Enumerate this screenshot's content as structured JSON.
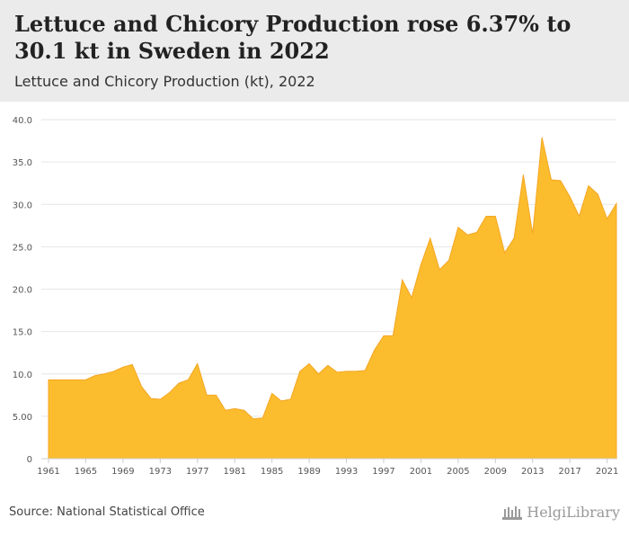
{
  "header": {
    "title": "Lettuce and Chicory Production rose 6.37% to 30.1 kt in Sweden in 2022",
    "subtitle": "Lettuce and Chicory Production (kt), 2022"
  },
  "footer": {
    "source": "Source: National Statistical Office",
    "brand": "HelgiLibrary"
  },
  "colors": {
    "area": "#fbbd2e",
    "area_stroke": "#f5a623",
    "grid": "#e6e6e6",
    "header_bg": "#ebebeb"
  },
  "chart_data": {
    "type": "area",
    "title": "Lettuce and Chicory Production (kt), 2022",
    "xlabel": "",
    "ylabel": "",
    "ylim": [
      0,
      40
    ],
    "yticks": [
      "0",
      "5.00",
      "10.0",
      "15.0",
      "20.0",
      "25.0",
      "30.0",
      "35.0",
      "40.0"
    ],
    "xticks": [
      "1961",
      "1965",
      "1969",
      "1973",
      "1977",
      "1981",
      "1985",
      "1989",
      "1993",
      "1997",
      "2001",
      "2005",
      "2009",
      "2013",
      "2017",
      "2021"
    ],
    "grid": true,
    "legend": "none",
    "x": [
      1961,
      1962,
      1963,
      1964,
      1965,
      1966,
      1967,
      1968,
      1969,
      1970,
      1971,
      1972,
      1973,
      1974,
      1975,
      1976,
      1977,
      1978,
      1979,
      1980,
      1981,
      1982,
      1983,
      1984,
      1985,
      1986,
      1987,
      1988,
      1989,
      1990,
      1991,
      1992,
      1993,
      1994,
      1995,
      1996,
      1997,
      1998,
      1999,
      2000,
      2001,
      2002,
      2003,
      2004,
      2005,
      2006,
      2007,
      2008,
      2009,
      2010,
      2011,
      2012,
      2013,
      2014,
      2015,
      2016,
      2017,
      2018,
      2019,
      2020,
      2021,
      2022
    ],
    "series": [
      {
        "values": [
          9.3,
          9.3,
          9.3,
          9.3,
          9.3,
          9.8,
          10.0,
          10.3,
          10.8,
          11.1,
          8.5,
          7.1,
          7.0,
          7.8,
          8.9,
          9.3,
          11.2,
          7.5,
          7.5,
          5.7,
          5.9,
          5.7,
          4.7,
          4.8,
          7.7,
          6.8,
          7.0,
          10.3,
          11.2,
          10.0,
          11.0,
          10.2,
          10.3,
          10.3,
          10.4,
          12.8,
          14.5,
          14.5,
          21.1,
          19.0,
          22.9,
          26.0,
          22.3,
          23.4,
          27.3,
          26.4,
          26.7,
          28.6,
          28.6,
          24.3,
          26.0,
          33.5,
          26.5,
          37.9,
          32.9,
          32.8,
          30.9,
          28.6,
          32.2,
          31.2,
          28.3,
          30.1
        ]
      }
    ]
  }
}
